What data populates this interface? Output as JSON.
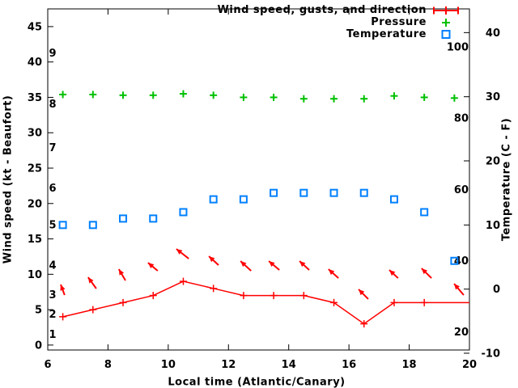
{
  "figure": {
    "background": "#ffffff",
    "text_color": "#000000"
  },
  "legend": {
    "position": "top-right",
    "entries": [
      {
        "label": "Wind speed, gusts, and direction",
        "color": "#ff0000",
        "marker": "errorbar-line-plus"
      },
      {
        "label": "Pressure",
        "color": "#00c000",
        "marker": "plus"
      },
      {
        "label": "Temperature",
        "color": "#0080ff",
        "marker": "open-square"
      }
    ]
  },
  "chart_data": {
    "type": "line",
    "title": "",
    "xlabel": "Local time (Atlantic/Canary)",
    "ylabel": "Wind speed (kt - Beaufort)",
    "y2label": "Temperature (C - F)",
    "xlim": [
      6,
      20
    ],
    "ylim_kt": [
      -0.7,
      47.5
    ],
    "y2lim_c": [
      -9.5,
      43.7
    ],
    "grid": false,
    "x_ticks": [
      6,
      8,
      10,
      12,
      14,
      16,
      18,
      20
    ],
    "y_ticks_kt": [
      0,
      5,
      10,
      15,
      20,
      25,
      30,
      35,
      40,
      45
    ],
    "y2_ticks_c": [
      -10,
      0,
      10,
      20,
      30,
      40
    ],
    "beaufort_scale_labels": [
      {
        "label": "1",
        "kt": 1.5
      },
      {
        "label": "2",
        "kt": 4.4
      },
      {
        "label": "3",
        "kt": 7.1
      },
      {
        "label": "4",
        "kt": 11.3
      },
      {
        "label": "5",
        "kt": 17.0
      },
      {
        "label": "6",
        "kt": 22.2
      },
      {
        "label": "7",
        "kt": 27.9
      },
      {
        "label": "8",
        "kt": 34.1
      },
      {
        "label": "9",
        "kt": 41.3
      }
    ],
    "fahrenheit_scale_labels": [
      {
        "label": "20",
        "f": 20
      },
      {
        "label": "40",
        "f": 40
      },
      {
        "label": "60",
        "f": 60
      },
      {
        "label": "80",
        "f": 80
      },
      {
        "label": "100",
        "f": 100
      }
    ],
    "series": [
      {
        "name": "Wind speed",
        "color": "#ff0000",
        "marker": "plus",
        "style": "line+markers",
        "axis": "kt",
        "x": [
          6.5,
          7.5,
          8.5,
          9.5,
          10.5,
          11.5,
          12.5,
          13.5,
          14.5,
          15.5,
          16.5,
          17.5,
          18.5
        ],
        "values": [
          4,
          5,
          6,
          7,
          9,
          8,
          7,
          7,
          7,
          6,
          3,
          6,
          6
        ],
        "line_extension": {
          "x": 20,
          "value": 6
        }
      },
      {
        "name": "Pressure",
        "color": "#00c000",
        "marker": "plus",
        "style": "markers",
        "axis": "kt",
        "note": "pressure plotted against unlabeled scale; values given in left-axis coordinates",
        "x": [
          6.5,
          7.5,
          8.5,
          9.5,
          10.5,
          11.5,
          12.5,
          13.5,
          14.5,
          15.5,
          16.5,
          17.5,
          18.5,
          19.5
        ],
        "values": [
          35.4,
          35.4,
          35.3,
          35.3,
          35.5,
          35.3,
          35.0,
          35.0,
          34.8,
          34.8,
          34.8,
          35.2,
          35.0,
          34.9
        ]
      },
      {
        "name": "Temperature",
        "color": "#0080ff",
        "marker": "open-square",
        "style": "markers",
        "axis": "c",
        "x": [
          6.5,
          7.5,
          8.5,
          9.5,
          10.5,
          11.5,
          12.5,
          13.5,
          14.5,
          15.5,
          16.5,
          17.5,
          18.5,
          19.5
        ],
        "values": [
          10,
          10,
          11,
          11,
          12,
          14,
          14,
          15,
          15,
          15,
          15,
          14,
          12,
          4.4
        ]
      }
    ],
    "wind_gust_arrows": {
      "color": "#ff0000",
      "axis": "kt",
      "arrows": [
        {
          "tail": [
            6.56,
            7.07
          ],
          "head": [
            6.43,
            8.55
          ]
        },
        {
          "tail": [
            7.61,
            7.98
          ],
          "head": [
            7.34,
            9.58
          ]
        },
        {
          "tail": [
            8.58,
            9.12
          ],
          "head": [
            8.36,
            10.72
          ]
        },
        {
          "tail": [
            9.65,
            10.49
          ],
          "head": [
            9.33,
            11.63
          ]
        },
        {
          "tail": [
            10.68,
            12.21
          ],
          "head": [
            10.27,
            13.58
          ]
        },
        {
          "tail": [
            11.67,
            11.29
          ],
          "head": [
            11.35,
            12.55
          ]
        },
        {
          "tail": [
            12.75,
            10.49
          ],
          "head": [
            12.4,
            11.86
          ]
        },
        {
          "tail": [
            13.69,
            10.61
          ],
          "head": [
            13.34,
            11.86
          ]
        },
        {
          "tail": [
            14.68,
            10.61
          ],
          "head": [
            14.36,
            11.86
          ]
        },
        {
          "tail": [
            15.65,
            9.46
          ],
          "head": [
            15.32,
            10.72
          ]
        },
        {
          "tail": [
            16.64,
            6.5
          ],
          "head": [
            16.32,
            7.87
          ]
        },
        {
          "tail": [
            17.63,
            9.46
          ],
          "head": [
            17.34,
            10.61
          ]
        },
        {
          "tail": [
            18.74,
            9.46
          ],
          "head": [
            18.41,
            10.84
          ]
        },
        {
          "tail": [
            19.81,
            7.07
          ],
          "head": [
            19.49,
            8.67
          ]
        }
      ]
    }
  }
}
